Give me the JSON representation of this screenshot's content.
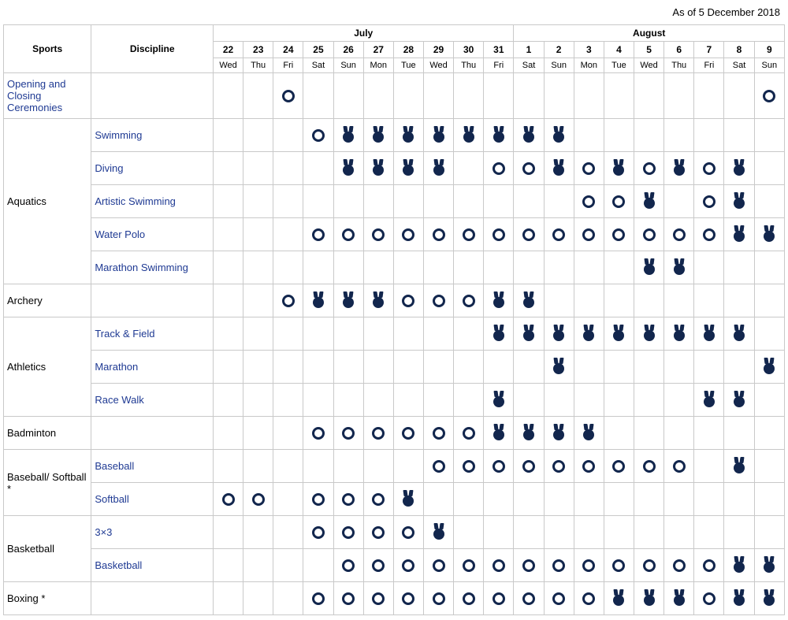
{
  "as_of": "As of 5 December 2018",
  "header": {
    "sports": "Sports",
    "discipline": "Discipline",
    "months": [
      "July",
      "August"
    ],
    "july_span": 10,
    "august_span": 9,
    "day_numbers": [
      "22",
      "23",
      "24",
      "25",
      "26",
      "27",
      "28",
      "29",
      "30",
      "31",
      "1",
      "2",
      "3",
      "4",
      "5",
      "6",
      "7",
      "8",
      "9"
    ],
    "day_names": [
      "Wed",
      "Thu",
      "Fri",
      "Sat",
      "Sun",
      "Mon",
      "Tue",
      "Wed",
      "Thu",
      "Fri",
      "Sat",
      "Sun",
      "Mon",
      "Tue",
      "Wed",
      "Thu",
      "Fri",
      "Sat",
      "Sun"
    ]
  },
  "marker_colors": {
    "symbol": "#12264d"
  },
  "n_days": 19,
  "rows": [
    {
      "sport": "Opening and Closing Ceremonies",
      "sport_link": true,
      "sport_rowspan": 1,
      "discipline": "",
      "cells": [
        "",
        "",
        "O",
        "",
        "",
        "",
        "",
        "",
        "",
        "",
        "",
        "",
        "",
        "",
        "",
        "",
        "",
        "",
        "O"
      ]
    },
    {
      "sport": "Aquatics",
      "sport_rowspan": 5,
      "discipline": "Swimming",
      "discipline_link": true,
      "cells": [
        "",
        "",
        "",
        "O",
        "M",
        "M",
        "M",
        "M",
        "M",
        "M",
        "M",
        "M",
        "",
        "",
        "",
        "",
        "",
        "",
        ""
      ]
    },
    {
      "discipline": "Diving",
      "discipline_link": true,
      "cells": [
        "",
        "",
        "",
        "",
        "M",
        "M",
        "M",
        "M",
        "",
        "O",
        "O",
        "M",
        "O",
        "M",
        "O",
        "M",
        "O",
        "M",
        ""
      ]
    },
    {
      "discipline": "Artistic Swimming",
      "discipline_link": true,
      "cells": [
        "",
        "",
        "",
        "",
        "",
        "",
        "",
        "",
        "",
        "",
        "",
        "",
        "O",
        "O",
        "M",
        "",
        "O",
        "M",
        ""
      ]
    },
    {
      "discipline": "Water Polo",
      "discipline_link": true,
      "cells": [
        "",
        "",
        "",
        "O",
        "O",
        "O",
        "O",
        "O",
        "O",
        "O",
        "O",
        "O",
        "O",
        "O",
        "O",
        "O",
        "O",
        "M",
        "M"
      ]
    },
    {
      "discipline": "Marathon Swimming",
      "discipline_link": true,
      "cells": [
        "",
        "",
        "",
        "",
        "",
        "",
        "",
        "",
        "",
        "",
        "",
        "",
        "",
        "",
        "M",
        "M",
        "",
        "",
        ""
      ]
    },
    {
      "sport": "Archery",
      "sport_rowspan": 1,
      "discipline": "",
      "cells": [
        "",
        "",
        "O",
        "M",
        "M",
        "M",
        "O",
        "O",
        "O",
        "M",
        "M",
        "",
        "",
        "",
        "",
        "",
        "",
        "",
        ""
      ]
    },
    {
      "sport": "Athletics",
      "sport_rowspan": 3,
      "discipline": "Track & Field",
      "discipline_link": true,
      "cells": [
        "",
        "",
        "",
        "",
        "",
        "",
        "",
        "",
        "",
        "M",
        "M",
        "M",
        "M",
        "M",
        "M",
        "M",
        "M",
        "M",
        ""
      ]
    },
    {
      "discipline": "Marathon",
      "discipline_link": true,
      "cells": [
        "",
        "",
        "",
        "",
        "",
        "",
        "",
        "",
        "",
        "",
        "",
        "M",
        "",
        "",
        "",
        "",
        "",
        "",
        "M"
      ]
    },
    {
      "discipline": "Race Walk",
      "discipline_link": true,
      "cells": [
        "",
        "",
        "",
        "",
        "",
        "",
        "",
        "",
        "",
        "M",
        "",
        "",
        "",
        "",
        "",
        "",
        "M",
        "M",
        ""
      ]
    },
    {
      "sport": "Badminton",
      "sport_rowspan": 1,
      "discipline": "",
      "cells": [
        "",
        "",
        "",
        "O",
        "O",
        "O",
        "O",
        "O",
        "O",
        "M",
        "M",
        "M",
        "M",
        "",
        "",
        "",
        "",
        "",
        ""
      ]
    },
    {
      "sport": "Baseball/ Softball *",
      "sport_rowspan": 2,
      "discipline": "Baseball",
      "discipline_link": true,
      "cells": [
        "",
        "",
        "",
        "",
        "",
        "",
        "",
        "O",
        "O",
        "O",
        "O",
        "O",
        "O",
        "O",
        "O",
        "O",
        "",
        "M",
        ""
      ]
    },
    {
      "discipline": "Softball",
      "discipline_link": true,
      "cells": [
        "O",
        "O",
        "",
        "O",
        "O",
        "O",
        "M",
        "",
        "",
        "",
        "",
        "",
        "",
        "",
        "",
        "",
        "",
        "",
        ""
      ]
    },
    {
      "sport": "Basketball",
      "sport_rowspan": 2,
      "discipline": "3×3",
      "discipline_link": true,
      "cells": [
        "",
        "",
        "",
        "O",
        "O",
        "O",
        "O",
        "M",
        "",
        "",
        "",
        "",
        "",
        "",
        "",
        "",
        "",
        "",
        ""
      ]
    },
    {
      "discipline": "Basketball",
      "discipline_link": true,
      "cells": [
        "",
        "",
        "",
        "",
        "O",
        "O",
        "O",
        "O",
        "O",
        "O",
        "O",
        "O",
        "O",
        "O",
        "O",
        "O",
        "O",
        "M",
        "M"
      ]
    },
    {
      "sport": "Boxing *",
      "sport_rowspan": 1,
      "discipline": "",
      "cells": [
        "",
        "",
        "",
        "O",
        "O",
        "O",
        "O",
        "O",
        "O",
        "O",
        "O",
        "O",
        "O",
        "M",
        "M",
        "M",
        "O",
        "M",
        "M"
      ]
    }
  ]
}
